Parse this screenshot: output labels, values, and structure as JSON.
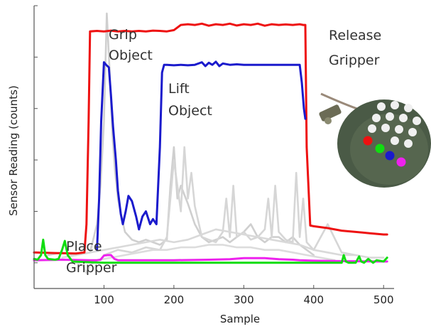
{
  "chart_data": {
    "type": "line",
    "title": "",
    "xlabel": "Sample",
    "ylabel": "Sensor Reading (counts)",
    "xlim": [
      0,
      515
    ],
    "xticks": [
      100,
      200,
      300,
      400,
      500
    ],
    "ylim": [
      -1,
      10
    ],
    "grid": false,
    "annotations": {
      "grip": [
        "Grip",
        "Object"
      ],
      "lift": [
        "Lift",
        "Object"
      ],
      "release": [
        "Release",
        "Gripper"
      ],
      "place": [
        "Place",
        "Gripper"
      ]
    },
    "series": [
      {
        "color": "#ee1111",
        "x": [
          0,
          30,
          60,
          72,
          75,
          78,
          80,
          90,
          100,
          110,
          120,
          130,
          140,
          150,
          160,
          170,
          180,
          190,
          200,
          210,
          220,
          230,
          240,
          250,
          260,
          270,
          280,
          290,
          300,
          310,
          320,
          330,
          340,
          350,
          360,
          370,
          380,
          385,
          388,
          390,
          395,
          400,
          420,
          440,
          460,
          480,
          500,
          505
        ],
        "y": [
          0.4,
          0.38,
          0.36,
          0.4,
          1.5,
          5.5,
          9.0,
          9.02,
          9.0,
          9.03,
          9.0,
          9.02,
          9.0,
          9.02,
          9.0,
          9.03,
          9.02,
          9.0,
          9.05,
          9.25,
          9.28,
          9.25,
          9.3,
          9.22,
          9.28,
          9.25,
          9.3,
          9.23,
          9.28,
          9.25,
          9.3,
          9.22,
          9.28,
          9.25,
          9.27,
          9.25,
          9.28,
          9.25,
          9.25,
          4.5,
          1.45,
          1.42,
          1.35,
          1.25,
          1.2,
          1.15,
          1.1,
          1.1
        ]
      },
      {
        "color": "#1a1acc",
        "x": [
          90,
          93,
          96,
          100,
          103,
          107,
          110,
          113,
          117,
          120,
          124,
          127,
          131,
          135,
          140,
          146,
          150,
          155,
          160,
          166,
          170,
          175,
          180,
          183,
          186,
          190,
          200,
          210,
          220,
          230,
          240,
          245,
          250,
          255,
          260,
          265,
          270,
          280,
          290,
          300,
          320,
          340,
          360,
          380,
          383,
          386,
          388
        ],
        "y": [
          0.5,
          2.5,
          5.5,
          7.8,
          7.7,
          7.6,
          6.5,
          5.3,
          4.0,
          2.8,
          1.9,
          1.5,
          2.0,
          2.6,
          2.4,
          1.8,
          1.3,
          1.8,
          2.0,
          1.5,
          1.7,
          1.5,
          4.5,
          7.4,
          7.7,
          7.7,
          7.68,
          7.7,
          7.68,
          7.7,
          7.8,
          7.65,
          7.78,
          7.7,
          7.82,
          7.65,
          7.75,
          7.7,
          7.72,
          7.7,
          7.7,
          7.7,
          7.7,
          7.7,
          7.0,
          6.0,
          5.6
        ]
      },
      {
        "color": "#ee22ee",
        "x": [
          0,
          40,
          80,
          90,
          95,
          100,
          105,
          110,
          115,
          120,
          150,
          200,
          250,
          280,
          300,
          330,
          350,
          370,
          380,
          400,
          450,
          500,
          505
        ],
        "y": [
          0.1,
          0.12,
          0.1,
          0.1,
          0.12,
          0.28,
          0.3,
          0.3,
          0.15,
          0.1,
          0.1,
          0.1,
          0.12,
          0.14,
          0.18,
          0.18,
          0.14,
          0.12,
          0.1,
          0.08,
          0.06,
          0.05,
          0.05
        ]
      },
      {
        "color": "#11dd11",
        "x": [
          0,
          5,
          10,
          13,
          16,
          20,
          30,
          35,
          40,
          44,
          48,
          55,
          80,
          100,
          150,
          200,
          250,
          300,
          350,
          380,
          400,
          440,
          443,
          446,
          450,
          460,
          465,
          468,
          472,
          478,
          485,
          490,
          500,
          505
        ],
        "y": [
          0.15,
          0.12,
          0.3,
          0.9,
          0.3,
          0.15,
          0.12,
          0.15,
          0.5,
          0.85,
          0.3,
          0.05,
          0.02,
          0.0,
          0.0,
          0.0,
          0.0,
          0.0,
          0.0,
          0.0,
          0.0,
          0.0,
          0.3,
          0.05,
          0.0,
          0.0,
          0.25,
          0.05,
          0.0,
          0.15,
          0.0,
          0.1,
          0.05,
          0.2
        ]
      },
      {
        "color": "#cfcfcf",
        "x": [
          20,
          40,
          60,
          80,
          90,
          95,
          100,
          104,
          108,
          112,
          116,
          120,
          125,
          130,
          140,
          150,
          160,
          170,
          180,
          190,
          195,
          200,
          205,
          210,
          220,
          230,
          240,
          250,
          260,
          270,
          280,
          290,
          300,
          310,
          320,
          330,
          340,
          350,
          360,
          370,
          380,
          390,
          400
        ],
        "y": [
          0.3,
          0.4,
          0.3,
          0.4,
          1.5,
          3.0,
          5.5,
          9.7,
          7.5,
          5.0,
          3.5,
          2.5,
          1.8,
          1.2,
          0.9,
          0.8,
          0.9,
          0.8,
          0.7,
          0.9,
          3.0,
          4.5,
          2.5,
          3.0,
          2.3,
          1.5,
          1.0,
          0.8,
          0.9,
          1.0,
          0.8,
          1.0,
          1.2,
          1.5,
          1.0,
          0.8,
          1.0,
          1.0,
          0.8,
          1.0,
          0.7,
          0.5,
          0.3
        ]
      },
      {
        "color": "#d6d6d6",
        "x": [
          100,
          120,
          140,
          160,
          180,
          190,
          195,
          200,
          205,
          210,
          215,
          220,
          225,
          230,
          240,
          250,
          260,
          270,
          275,
          280,
          285,
          290,
          300,
          310,
          320,
          330,
          335,
          340,
          345,
          350,
          360,
          370,
          375,
          380,
          385,
          390,
          400,
          420,
          440,
          460
        ],
        "y": [
          0.3,
          0.5,
          0.4,
          0.6,
          0.5,
          1.0,
          2.5,
          4.0,
          3.0,
          2.0,
          4.5,
          2.5,
          3.5,
          2.2,
          1.0,
          0.9,
          0.8,
          1.2,
          2.5,
          1.0,
          3.0,
          1.0,
          1.2,
          0.9,
          1.0,
          1.3,
          2.5,
          1.0,
          3.0,
          1.2,
          0.9,
          0.8,
          3.5,
          1.0,
          2.5,
          0.8,
          0.5,
          1.5,
          0.4,
          0.3
        ]
      },
      {
        "color": "#d9d9d9",
        "x": [
          40,
          60,
          80,
          100,
          120,
          140,
          160,
          180,
          200,
          220,
          240,
          260,
          280,
          300,
          320,
          340,
          360,
          380,
          400,
          420,
          440,
          460,
          480,
          500
        ],
        "y": [
          0.2,
          0.3,
          0.4,
          0.5,
          0.6,
          0.7,
          0.8,
          0.9,
          0.8,
          0.9,
          1.1,
          1.3,
          1.2,
          1.1,
          1.0,
          0.9,
          0.8,
          0.7,
          0.5,
          0.4,
          0.3,
          0.3,
          0.2,
          0.2
        ]
      },
      {
        "color": "#dcdcdc",
        "x": [
          60,
          70,
          75,
          80,
          90,
          110,
          130,
          150,
          170,
          190,
          210,
          230,
          250,
          270,
          290,
          310,
          330,
          350,
          370,
          390,
          410,
          430
        ],
        "y": [
          0.0,
          -0.1,
          -0.4,
          -0.1,
          0.1,
          0.2,
          0.3,
          0.4,
          0.5,
          0.5,
          0.6,
          0.6,
          0.7,
          0.7,
          0.6,
          0.6,
          0.5,
          0.5,
          0.4,
          0.3,
          0.2,
          0.1
        ]
      }
    ]
  }
}
